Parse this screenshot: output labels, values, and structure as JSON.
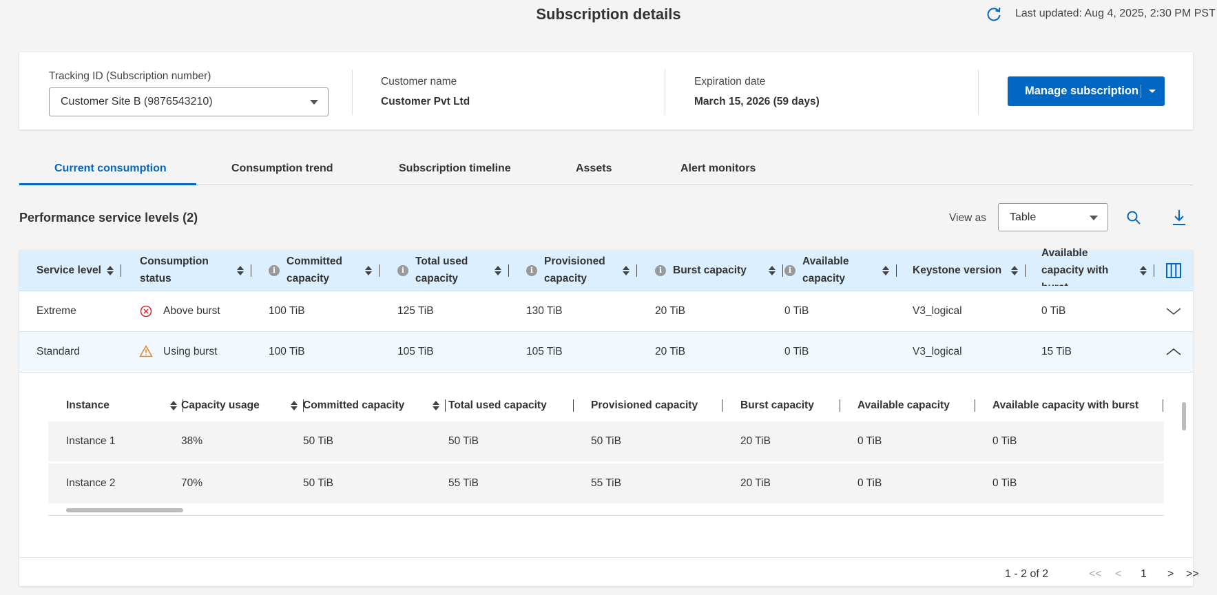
{
  "header": {
    "title": "Subscription details",
    "last_updated": "Last updated: Aug 4, 2025, 2:30 PM PST",
    "refresh_icon": "refresh-icon"
  },
  "summary": {
    "tracking_label": "Tracking ID (Subscription number)",
    "tracking_value": "Customer Site B (9876543210)",
    "customer_label": "Customer name",
    "customer_value": "Customer Pvt Ltd",
    "expiration_label": "Expiration date",
    "expiration_value": "March 15, 2026 (59 days)",
    "manage_button": "Manage subscription"
  },
  "tabs": [
    {
      "label": "Current consumption",
      "active": true
    },
    {
      "label": "Consumption trend"
    },
    {
      "label": "Subscription timeline"
    },
    {
      "label": "Assets"
    },
    {
      "label": "Alert monitors"
    }
  ],
  "section": {
    "title": "Performance service levels (2)",
    "view_as_label": "View as",
    "view_as_value": "Table"
  },
  "colors": {
    "accent": "#0067c5",
    "header_bg": "#dcefff",
    "error": "#d9262c",
    "warning": "#e8821a"
  },
  "table": {
    "columns": [
      "Service level",
      "Consumption status",
      "Committed capacity",
      "Total used capacity",
      "Provisioned capacity",
      "Burst capacity",
      "Available capacity",
      "Keystone version",
      "Available capacity with burst"
    ],
    "rows": [
      {
        "cells": [
          "Extreme",
          "Above burst",
          "100 TiB",
          "125 TiB",
          "130 TiB",
          "20 TiB",
          "0 TiB",
          "V3_logical",
          "0 TiB"
        ],
        "status_icon": "error-circle-icon",
        "expanded": false
      },
      {
        "cells": [
          "Standard",
          "Using burst",
          "100 TiB",
          "105 TiB",
          "105 TiB",
          "20 TiB",
          "0 TiB",
          "V3_logical",
          "15 TiB"
        ],
        "status_icon": "warning-icon",
        "expanded": true
      }
    ]
  },
  "instances": {
    "columns": [
      "Instance",
      "Capacity usage",
      "Committed capacity",
      "Total used capacity",
      "Provisioned capacity",
      "Burst capacity",
      "Available capacity",
      "Available capacity with burst"
    ],
    "rows": [
      [
        "Instance 1",
        "38%",
        "50 TiB",
        "50 TiB",
        "50 TiB",
        "20 TiB",
        "0 TiB",
        "0 TiB"
      ],
      [
        "Instance 2",
        "70%",
        "50 TiB",
        "55 TiB",
        "55 TiB",
        "20 TiB",
        "0 TiB",
        "0 TiB"
      ]
    ]
  },
  "pagination": {
    "range": "1 - 2 of 2",
    "page": "1",
    "first": "<<",
    "prev": "<",
    "next": ">",
    "last": ">>"
  }
}
